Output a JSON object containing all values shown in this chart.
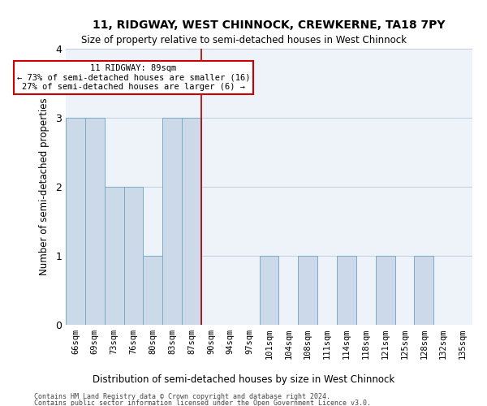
{
  "title": "11, RIDGWAY, WEST CHINNOCK, CREWKERNE, TA18 7PY",
  "subtitle": "Size of property relative to semi-detached houses in West Chinnock",
  "xlabel": "Distribution of semi-detached houses by size in West Chinnock",
  "ylabel": "Number of semi-detached properties",
  "footer1": "Contains HM Land Registry data © Crown copyright and database right 2024.",
  "footer2": "Contains public sector information licensed under the Open Government Licence v3.0.",
  "bins": [
    "66sqm",
    "69sqm",
    "73sqm",
    "76sqm",
    "80sqm",
    "83sqm",
    "87sqm",
    "90sqm",
    "94sqm",
    "97sqm",
    "101sqm",
    "104sqm",
    "108sqm",
    "111sqm",
    "114sqm",
    "118sqm",
    "121sqm",
    "125sqm",
    "128sqm",
    "132sqm",
    "135sqm"
  ],
  "values": [
    3,
    3,
    2,
    2,
    1,
    3,
    3,
    0,
    0,
    0,
    1,
    0,
    1,
    0,
    1,
    0,
    1,
    0,
    1,
    0,
    0
  ],
  "bar_color": "#ccd9e8",
  "bar_edge_color": "#7aaac8",
  "subject_line_bin": 7,
  "subject_line_color": "#aa0000",
  "annotation_title": "11 RIDGWAY: 89sqm",
  "annotation_line1": "← 73% of semi-detached houses are smaller (16)",
  "annotation_line2": "27% of semi-detached houses are larger (6) →",
  "annotation_box_color": "#cc0000",
  "ylim": [
    0,
    4
  ],
  "yticks": [
    0,
    1,
    2,
    3,
    4
  ],
  "plot_bg_color": "#eef3fa",
  "grid_color": "#c0cce0"
}
